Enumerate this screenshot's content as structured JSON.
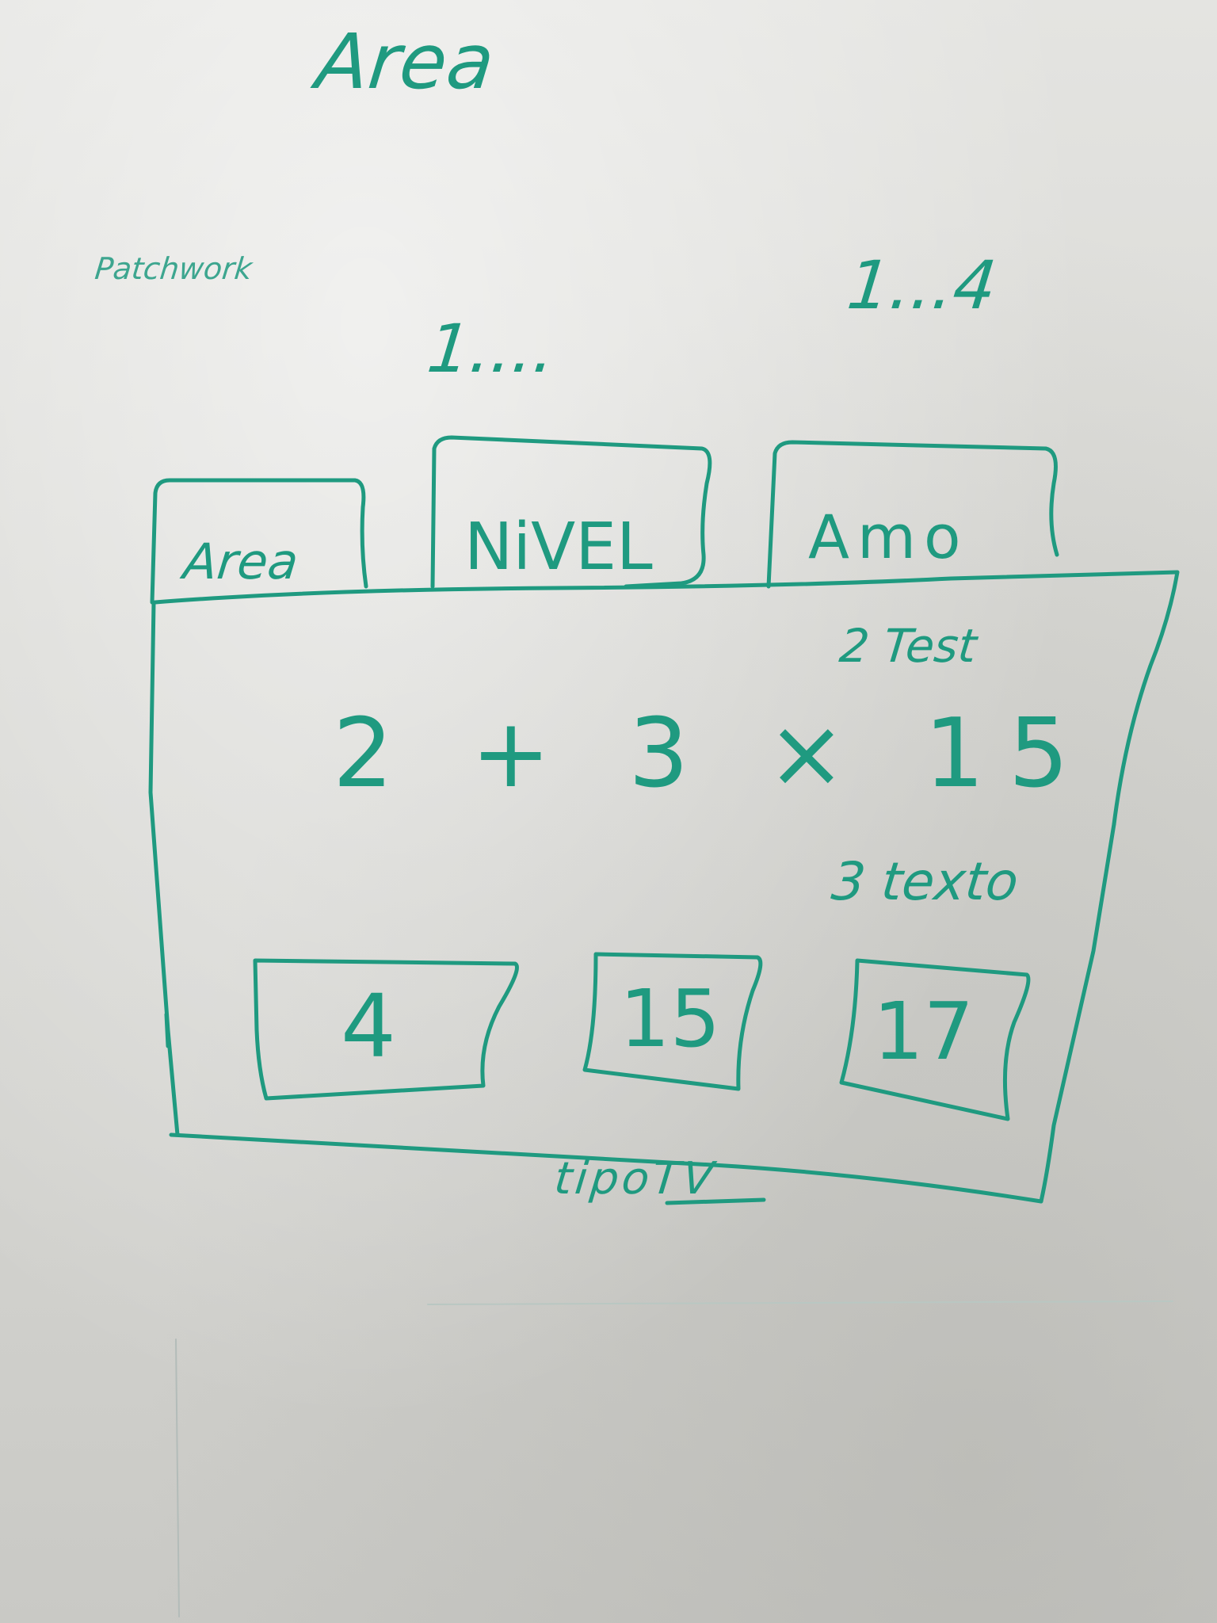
{
  "colors": {
    "marker": "#1f9a80",
    "marker_blue": "#1b3a8a",
    "board": "#d9d9d6"
  },
  "top": {
    "title": "Area",
    "side_note": "Patchwork",
    "range_a": "1...4",
    "range_b": "1...."
  },
  "tabs": [
    {
      "label": "Area"
    },
    {
      "label": "NiVEL"
    },
    {
      "label": "Amo"
    }
  ],
  "panel": {
    "note_top": "2 Test",
    "expression": "2 + 3 × 15",
    "note_mid": "3 texto",
    "boxes": [
      {
        "value": "4"
      },
      {
        "value": "15"
      },
      {
        "value": "17"
      }
    ],
    "footer": "tipoTV"
  }
}
